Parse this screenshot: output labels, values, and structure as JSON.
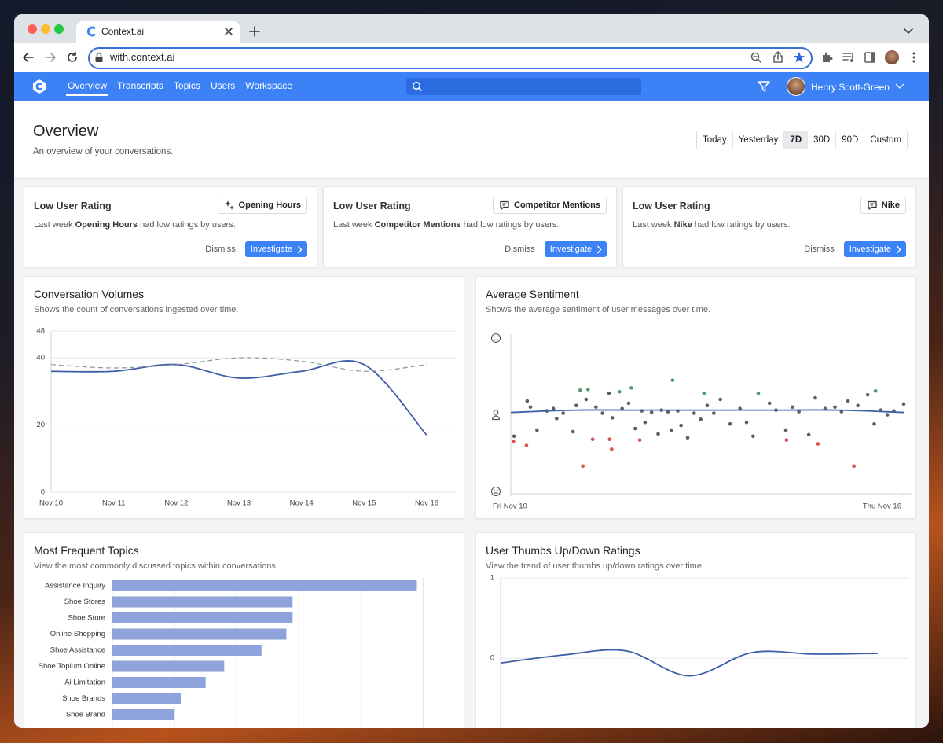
{
  "browser": {
    "tab_title": "Context.ai",
    "url": "with.context.ai"
  },
  "nav": {
    "items": [
      "Overview",
      "Transcripts",
      "Topics",
      "Users",
      "Workspace"
    ],
    "user": "Henry Scott-Green"
  },
  "header": {
    "title": "Overview",
    "subtitle": "An overview of your conversations.",
    "ranges": [
      "Today",
      "Yesterday",
      "7D",
      "30D",
      "90D",
      "Custom"
    ]
  },
  "alerts": [
    {
      "title": "Low User Rating",
      "tag": "Opening Hours",
      "text": [
        "Last week",
        "Opening Hours",
        "had low ratings by users."
      ],
      "dismiss": "Dismiss",
      "action": "Investigate"
    },
    {
      "title": "Low User Rating",
      "tag": "Competitor Mentions",
      "text": [
        "Last week",
        "Competitor Mentions",
        "had low ratings by users."
      ],
      "dismiss": "Dismiss",
      "action": "Investigate"
    },
    {
      "title": "Low User Rating",
      "tag": "Nike",
      "text": [
        "Last week",
        "Nike",
        "had low ratings by users."
      ],
      "dismiss": "Dismiss",
      "action": "Investigate"
    }
  ],
  "chart_data": [
    {
      "type": "line",
      "title": "Conversation Volumes",
      "subtitle": "Shows the count of conversations ingested over time.",
      "categories": [
        "Nov 10",
        "Nov 11",
        "Nov 12",
        "Nov 13",
        "Nov 14",
        "Nov 15",
        "Nov 16"
      ],
      "series": [
        {
          "color": "#3f5ea8",
          "values": [
            36,
            36,
            38,
            34,
            36,
            38,
            17
          ]
        },
        {
          "color": "#8a93a6",
          "dashed": true,
          "values": [
            38,
            37,
            38,
            40,
            39,
            36,
            38
          ]
        }
      ],
      "ylim": [
        0,
        48
      ],
      "yticks": [
        0,
        20,
        40,
        48
      ],
      "grid": true
    },
    {
      "type": "scatter",
      "title": "Average Sentiment",
      "subtitle": "Shows the average sentiment of user messages over time.",
      "xlim": [
        0,
        6
      ],
      "xticks": [
        {
          "value": 0,
          "label": "Fri Nov 10"
        },
        {
          "value": 6,
          "label": "Thu Nov 16"
        }
      ],
      "ylim": [
        -1,
        1
      ],
      "yticks": [
        -1,
        0,
        1
      ],
      "series": [
        {
          "color": "#5b5f66",
          "x": [
            0.05,
            0.25,
            0.3,
            0.4,
            0.55,
            0.65,
            0.7,
            0.8,
            0.95,
            1.0,
            1.15,
            1.3,
            1.4,
            1.5,
            1.55,
            1.7,
            1.8,
            1.9,
            2.0,
            2.05,
            2.15,
            2.25,
            2.3,
            2.4,
            2.45,
            2.55,
            2.6,
            2.7,
            2.8,
            2.9,
            3.0,
            3.1,
            3.2,
            3.35,
            3.5,
            3.6,
            3.7,
            3.95,
            4.05,
            4.2,
            4.3,
            4.4,
            4.55,
            4.65,
            4.8,
            4.95,
            5.05,
            5.15,
            5.3,
            5.45,
            5.55,
            5.65,
            5.75,
            5.85,
            6.0
          ],
          "values": [
            -0.28,
            0.18,
            0.1,
            -0.2,
            0.05,
            0.08,
            -0.05,
            0.02,
            -0.22,
            0.12,
            0.2,
            0.1,
            0.02,
            0.28,
            -0.04,
            0.08,
            0.15,
            -0.18,
            0.05,
            -0.1,
            0.03,
            -0.25,
            0.06,
            0.04,
            -0.2,
            0.05,
            -0.14,
            -0.3,
            0.02,
            -0.06,
            0.12,
            0.02,
            0.2,
            -0.12,
            0.08,
            -0.1,
            -0.28,
            0.15,
            0.06,
            -0.2,
            0.1,
            0.04,
            -0.26,
            0.22,
            0.08,
            0.1,
            0.04,
            0.18,
            0.12,
            0.26,
            -0.12,
            0.06,
            0.0,
            0.05,
            0.14
          ]
        },
        {
          "color": "#4f9a73",
          "x": [
            1.06,
            1.18,
            1.66,
            1.84,
            2.47,
            2.95,
            3.78,
            5.57
          ],
          "values": [
            0.32,
            0.33,
            0.3,
            0.35,
            0.45,
            0.28,
            0.28,
            0.31
          ]
        },
        {
          "color": "#d9534f",
          "x": [
            0.04,
            0.24,
            1.1,
            1.25,
            1.51,
            1.54,
            1.97,
            4.21,
            4.69,
            5.24
          ],
          "values": [
            -0.35,
            -0.4,
            -0.67,
            -0.32,
            -0.32,
            -0.45,
            -0.33,
            -0.33,
            -0.38,
            -0.67
          ]
        }
      ],
      "trend": {
        "color": "#3f5ea8",
        "x": [
          0,
          1,
          2,
          3,
          4,
          5,
          6
        ],
        "values": [
          0.03,
          0.06,
          0.06,
          0.06,
          0.06,
          0.06,
          0.03
        ]
      }
    },
    {
      "type": "barh",
      "title": "Most Frequent Topics",
      "subtitle": "View the most commonly discussed topics within conversations.",
      "categories": [
        "Assistance Inquiry",
        "Shoe Stores",
        "Shoe Store",
        "Online Shopping",
        "Shoe Assistance",
        "Shoe Topium Online",
        "Ai Limitation",
        "Shoe Brands",
        "Shoe Brand"
      ],
      "values": [
        49,
        29,
        29,
        28,
        24,
        18,
        15,
        11,
        10
      ],
      "color": "#8ea2db",
      "xlim": [
        0,
        54
      ],
      "xticks": [
        0,
        10,
        20,
        30,
        40,
        50
      ],
      "grid": true
    },
    {
      "type": "line",
      "title": "User Thumbs Up/Down Ratings",
      "subtitle": "View the trend of user thumbs up/down ratings over time.",
      "series": [
        {
          "color": "#3f5ea8",
          "values": [
            -0.06,
            0.04,
            0.09,
            -0.22,
            0.07,
            0.05,
            0.06
          ]
        }
      ],
      "ylim": [
        -0.9,
        1
      ],
      "yticks": [
        0,
        1
      ],
      "grid": true
    }
  ]
}
